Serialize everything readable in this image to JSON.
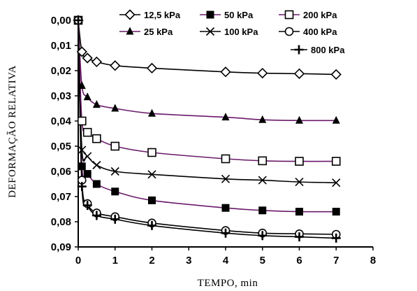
{
  "chart_data": {
    "type": "line",
    "title": "",
    "xlabel": "TEMPO, min",
    "ylabel": "DEFORMAÇÃO RELATIVA",
    "xlim": [
      0,
      8
    ],
    "ylim": [
      0,
      0.09
    ],
    "y_inverted": true,
    "grid": false,
    "x_ticks": [
      "0",
      "1",
      "2",
      "3",
      "4",
      "5",
      "6",
      "7",
      "8"
    ],
    "y_ticks": [
      "0,00",
      "0,01",
      "0,02",
      "0,03",
      "0,04",
      "0,05",
      "0,06",
      "0,07",
      "0,08",
      "0,09"
    ],
    "legend_position": "top-right",
    "series": [
      {
        "name": "12,5 kPa",
        "marker": "diamond-open",
        "color": "#000000",
        "x": [
          0,
          0.1,
          0.25,
          0.5,
          1,
          2,
          4,
          5,
          6,
          7
        ],
        "y": [
          0.0,
          0.0125,
          0.015,
          0.0165,
          0.018,
          0.019,
          0.0205,
          0.021,
          0.0212,
          0.0215
        ]
      },
      {
        "name": "25 kPa",
        "marker": "triangle-filled",
        "color": "#000000",
        "x": [
          0,
          0.1,
          0.25,
          0.5,
          1,
          2,
          4,
          5,
          6,
          7
        ],
        "y": [
          0.0,
          0.026,
          0.0305,
          0.0335,
          0.035,
          0.037,
          0.0385,
          0.0395,
          0.0398,
          0.0398
        ]
      },
      {
        "name": "50 kPa",
        "marker": "square-filled",
        "color": "#000000",
        "x": [
          0,
          0.1,
          0.25,
          0.5,
          1,
          2,
          4,
          5,
          6,
          7
        ],
        "y": [
          0.0,
          0.058,
          0.061,
          0.065,
          0.068,
          0.0715,
          0.0745,
          0.0755,
          0.076,
          0.076
        ]
      },
      {
        "name": "100 kPa",
        "marker": "x",
        "color": "#000000",
        "x": [
          0,
          0.1,
          0.25,
          0.5,
          1,
          2,
          4,
          5,
          6,
          7
        ],
        "y": [
          0.0,
          0.0515,
          0.054,
          0.0575,
          0.06,
          0.0612,
          0.063,
          0.0635,
          0.0642,
          0.0645
        ]
      },
      {
        "name": "200 kPa",
        "marker": "square-open",
        "color": "#000000",
        "x": [
          0,
          0.1,
          0.25,
          0.5,
          1,
          2,
          4,
          5,
          6,
          7
        ],
        "y": [
          0.0,
          0.04,
          0.0445,
          0.047,
          0.05,
          0.0525,
          0.055,
          0.0558,
          0.056,
          0.056
        ]
      },
      {
        "name": "400 kPa",
        "marker": "circle-open",
        "color": "#000000",
        "x": [
          0,
          0.1,
          0.25,
          0.5,
          1,
          2,
          4,
          5,
          6,
          7
        ],
        "y": [
          0.0,
          0.0635,
          0.0728,
          0.0765,
          0.078,
          0.0805,
          0.0835,
          0.0845,
          0.0848,
          0.085
        ]
      },
      {
        "name": "800 kPa",
        "marker": "plus",
        "color": "#000000",
        "x": [
          0,
          0.1,
          0.25,
          0.5,
          1,
          2,
          4,
          5,
          6,
          7
        ],
        "y": [
          0.0,
          0.066,
          0.0735,
          0.0775,
          0.079,
          0.0815,
          0.0845,
          0.0855,
          0.086,
          0.0865
        ]
      }
    ]
  }
}
